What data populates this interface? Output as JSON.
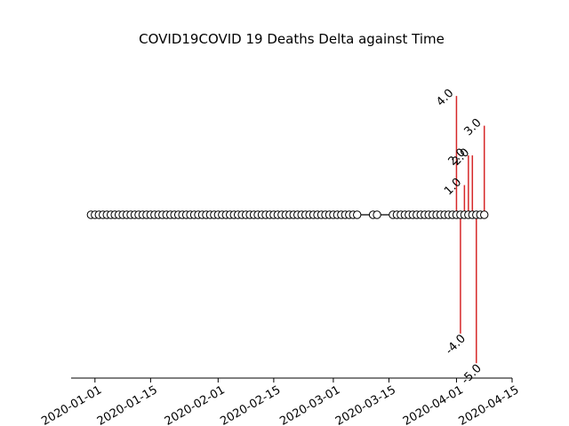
{
  "chart_data": {
    "type": "timeline",
    "title": "COVID19COVID 19 Deaths Delta against Time",
    "xlabel": "",
    "ylabel": "",
    "x_tick_labels": [
      "2020-01-01",
      "2020-01-15",
      "2020-02-01",
      "2020-02-15",
      "2020-03-01",
      "2020-03-15",
      "2020-04-01",
      "2020-04-15"
    ],
    "xlim": [
      "2019-12-26",
      "2020-04-15"
    ],
    "ylim": [
      -5.5,
      5.5
    ],
    "markers": {
      "start": "2019-12-31",
      "end": "2020-04-08",
      "missing_ranges": [
        [
          "2020-03-08",
          "2020-03-10"
        ],
        [
          "2020-03-13",
          "2020-03-15"
        ]
      ]
    },
    "stems": [
      {
        "date": "2020-04-01",
        "value": 4.0,
        "label": "4.0"
      },
      {
        "date": "2020-04-02",
        "value": -4.0,
        "label": "-4.0"
      },
      {
        "date": "2020-04-03",
        "value": 1.0,
        "label": "1.0"
      },
      {
        "date": "2020-04-04",
        "value": 2.0,
        "label": "2.0"
      },
      {
        "date": "2020-04-05",
        "value": 2.0,
        "label": "2.0"
      },
      {
        "date": "2020-04-06",
        "value": -5.0,
        "label": "-5.0"
      },
      {
        "date": "2020-04-08",
        "value": 3.0,
        "label": "3.0"
      }
    ],
    "stem_color": "#d62728",
    "baseline_color": "#000000",
    "marker_fill": "#ffffff",
    "marker_edge": "#000000"
  }
}
